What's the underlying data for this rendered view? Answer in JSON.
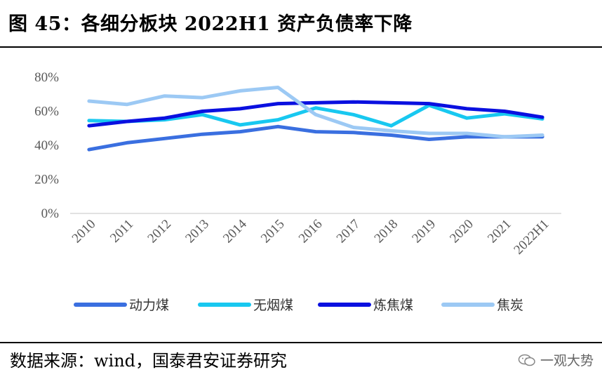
{
  "header": {
    "title": "图 45：各细分板块 2022H1 资产负债率下降"
  },
  "footer": {
    "source": "数据来源：wind，国泰君安证券研究",
    "watermark": "一观大势",
    "watermark_icon": "wechat-icon"
  },
  "chart_data": {
    "type": "line",
    "title": "",
    "xlabel": "",
    "ylabel": "",
    "categories": [
      "2010",
      "2011",
      "2012",
      "2013",
      "2014",
      "2015",
      "2016",
      "2017",
      "2018",
      "2019",
      "2020",
      "2021",
      "2022H1"
    ],
    "yticks": [
      "0%",
      "20%",
      "40%",
      "60%",
      "80%"
    ],
    "ylim": [
      0,
      80
    ],
    "grid": false,
    "legend_position": "bottom",
    "series": [
      {
        "name": "动力煤",
        "color": "#3a6fe0",
        "values": [
          37.5,
          41.5,
          44,
          46.5,
          48,
          51,
          48,
          47.5,
          46,
          43.5,
          45,
          45,
          45
        ]
      },
      {
        "name": "无烟煤",
        "color": "#18c8f0",
        "values": [
          54.5,
          54,
          55,
          58,
          52,
          55,
          62,
          58,
          51.5,
          63.5,
          56,
          58.5,
          55.5
        ]
      },
      {
        "name": "炼焦煤",
        "color": "#0a10e0",
        "values": [
          51.5,
          54,
          56,
          60,
          61.5,
          64.5,
          65,
          65.5,
          65,
          64.5,
          61.5,
          60,
          56.5
        ]
      },
      {
        "name": "焦炭",
        "color": "#9cc9f4",
        "values": [
          66,
          64,
          69,
          68,
          72,
          74,
          58,
          50.5,
          48.5,
          47,
          47,
          45,
          46
        ]
      }
    ]
  }
}
